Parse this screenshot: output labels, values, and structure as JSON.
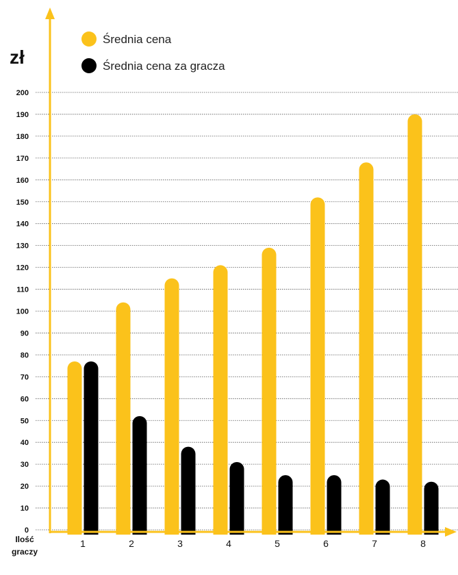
{
  "chart_data": {
    "type": "bar",
    "ylabel": "zł",
    "xlabel_lines": [
      "Ilość",
      "graczy"
    ],
    "categories": [
      "1",
      "2",
      "3",
      "4",
      "5",
      "6",
      "7",
      "8"
    ],
    "y_ticks": [
      "0",
      "10",
      "20",
      "30",
      "40",
      "50",
      "60",
      "70",
      "80",
      "90",
      "100",
      "110",
      "120",
      "130",
      "140",
      "150",
      "160",
      "170",
      "180",
      "190",
      "200"
    ],
    "ylim": [
      0,
      200
    ],
    "grid": true,
    "legend_position": "top-left",
    "series": [
      {
        "name": "Średnia cena",
        "color": "#FBC21B",
        "values": [
          77,
          104,
          115,
          121,
          129,
          152,
          168,
          190
        ]
      },
      {
        "name": "Średnia cena za gracza",
        "color": "#000000",
        "values": [
          77,
          52,
          38,
          31,
          25,
          25,
          23,
          22
        ]
      }
    ]
  },
  "colors": {
    "axis": "#FBC21B",
    "grid": "#555555"
  }
}
